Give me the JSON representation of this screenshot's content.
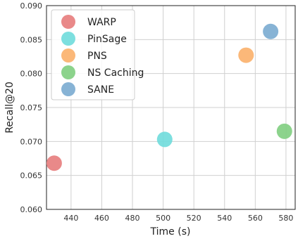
{
  "chart_data": {
    "type": "scatter",
    "xlabel": "Time (s)",
    "ylabel": "Recall@20",
    "xlim": [
      424,
      586
    ],
    "ylim": [
      0.06,
      0.09
    ],
    "x_ticks": [
      440,
      460,
      480,
      500,
      520,
      540,
      560,
      580
    ],
    "y_ticks": [
      0.06,
      0.065,
      0.07,
      0.075,
      0.08,
      0.085,
      0.09
    ],
    "grid": true,
    "legend_position": "top-left",
    "series": [
      {
        "name": "WARP",
        "color": "#e77c7c",
        "x": 429,
        "y": 0.0668
      },
      {
        "name": "PinSage",
        "color": "#6fdcdc",
        "x": 501,
        "y": 0.0703
      },
      {
        "name": "PNS",
        "color": "#fbb06a",
        "x": 554,
        "y": 0.0827
      },
      {
        "name": "NS Caching",
        "color": "#7fce7f",
        "x": 579,
        "y": 0.0715
      },
      {
        "name": "SANE",
        "color": "#7aabd0",
        "x": 570,
        "y": 0.0862
      }
    ]
  }
}
